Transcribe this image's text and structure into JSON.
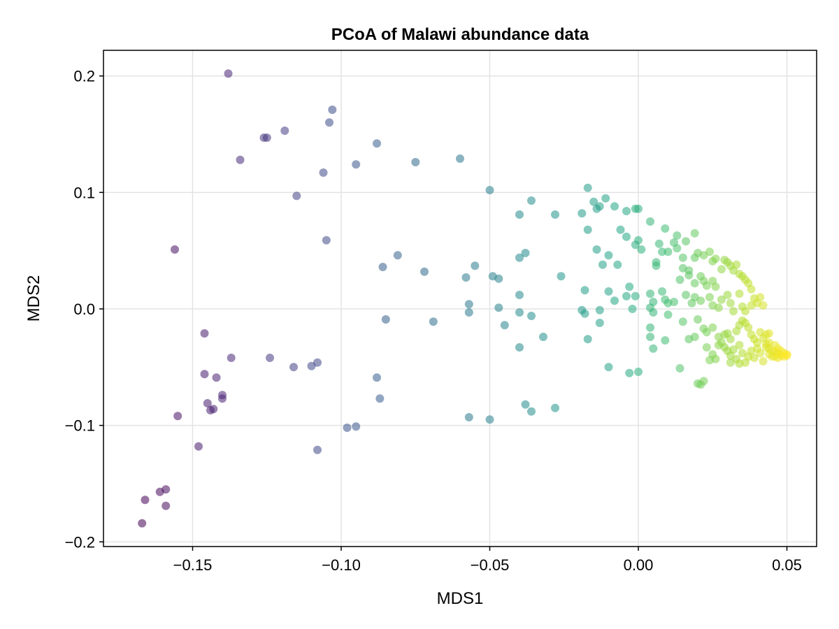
{
  "chart_data": {
    "type": "scatter",
    "title": "PCoA of Malawi abundance data",
    "xlabel": "MDS1",
    "ylabel": "MDS2",
    "xlim": [
      -0.18,
      0.06
    ],
    "ylim": [
      -0.204,
      0.222
    ],
    "xticks": [
      -0.15,
      -0.1,
      -0.05,
      0.0,
      0.05
    ],
    "xtick_labels": [
      "−0.15",
      "−0.10",
      "−0.05",
      "0.00",
      "0.05"
    ],
    "yticks": [
      -0.2,
      -0.1,
      0.0,
      0.1,
      0.2
    ],
    "ytick_labels": [
      "−0.2",
      "−0.1",
      "0.0",
      "0.1",
      "0.2"
    ],
    "grid": true,
    "legend": "none",
    "colormap": "viridis",
    "color_by": "MDS1",
    "point_opacity": 0.55,
    "points": [
      [
        -0.138,
        0.202
      ],
      [
        -0.103,
        0.171
      ],
      [
        -0.104,
        0.16
      ],
      [
        -0.125,
        0.147
      ],
      [
        -0.126,
        0.147
      ],
      [
        -0.119,
        0.153
      ],
      [
        -0.088,
        0.142
      ],
      [
        -0.134,
        0.128
      ],
      [
        -0.095,
        0.124
      ],
      [
        -0.075,
        0.126
      ],
      [
        -0.06,
        0.129
      ],
      [
        -0.106,
        0.117
      ],
      [
        -0.115,
        0.097
      ],
      [
        -0.105,
        0.059
      ],
      [
        -0.156,
        0.051
      ],
      [
        -0.05,
        0.102
      ],
      [
        -0.04,
        0.081
      ],
      [
        -0.036,
        0.093
      ],
      [
        -0.028,
        0.081
      ],
      [
        -0.081,
        0.046
      ],
      [
        -0.086,
        0.036
      ],
      [
        -0.072,
        0.032
      ],
      [
        -0.055,
        0.037
      ],
      [
        -0.058,
        0.027
      ],
      [
        -0.049,
        0.028
      ],
      [
        -0.047,
        0.026
      ],
      [
        -0.04,
        0.044
      ],
      [
        -0.038,
        0.048
      ],
      [
        -0.04,
        0.012
      ],
      [
        -0.026,
        0.028
      ],
      [
        -0.057,
        0.004
      ],
      [
        -0.057,
        -0.003
      ],
      [
        -0.047,
        0.001
      ],
      [
        -0.045,
        -0.014
      ],
      [
        -0.04,
        -0.003
      ],
      [
        -0.085,
        -0.009
      ],
      [
        -0.069,
        -0.011
      ],
      [
        -0.036,
        -0.006
      ],
      [
        -0.04,
        -0.033
      ],
      [
        -0.032,
        -0.024
      ],
      [
        -0.146,
        -0.021
      ],
      [
        -0.137,
        -0.042
      ],
      [
        -0.124,
        -0.042
      ],
      [
        -0.116,
        -0.05
      ],
      [
        -0.108,
        -0.046
      ],
      [
        -0.11,
        -0.049
      ],
      [
        -0.146,
        -0.056
      ],
      [
        -0.142,
        -0.059
      ],
      [
        -0.14,
        -0.074
      ],
      [
        -0.14,
        -0.077
      ],
      [
        -0.145,
        -0.081
      ],
      [
        -0.143,
        -0.086
      ],
      [
        -0.144,
        -0.087
      ],
      [
        -0.155,
        -0.092
      ],
      [
        -0.148,
        -0.118
      ],
      [
        -0.108,
        -0.121
      ],
      [
        -0.088,
        -0.059
      ],
      [
        -0.087,
        -0.077
      ],
      [
        -0.098,
        -0.102
      ],
      [
        -0.095,
        -0.101
      ],
      [
        -0.057,
        -0.093
      ],
      [
        -0.05,
        -0.095
      ],
      [
        -0.038,
        -0.082
      ],
      [
        -0.036,
        -0.088
      ],
      [
        -0.028,
        -0.085
      ],
      [
        -0.166,
        -0.164
      ],
      [
        -0.159,
        -0.155
      ],
      [
        -0.161,
        -0.157
      ],
      [
        -0.159,
        -0.169
      ],
      [
        -0.167,
        -0.184
      ],
      [
        -0.017,
        0.104
      ],
      [
        -0.015,
        0.092
      ],
      [
        -0.011,
        0.095
      ],
      [
        -0.013,
        0.088
      ],
      [
        -0.014,
        0.086
      ],
      [
        -0.019,
        0.082
      ],
      [
        -0.008,
        0.088
      ],
      [
        -0.004,
        0.084
      ],
      [
        -0.001,
        0.086
      ],
      [
        0.0,
        0.086
      ],
      [
        -0.006,
        0.068
      ],
      [
        -0.017,
        0.068
      ],
      [
        -0.004,
        0.062
      ],
      [
        0.004,
        0.075
      ],
      [
        0.009,
        0.069
      ],
      [
        0.013,
        0.063
      ],
      [
        0.019,
        0.065
      ],
      [
        -0.001,
        0.055
      ],
      [
        0.0,
        0.059
      ],
      [
        0.001,
        0.051
      ],
      [
        0.007,
        0.056
      ],
      [
        0.008,
        0.049
      ],
      [
        0.01,
        0.049
      ],
      [
        0.012,
        0.057
      ],
      [
        0.013,
        0.052
      ],
      [
        0.016,
        0.058
      ],
      [
        -0.014,
        0.051
      ],
      [
        -0.01,
        0.046
      ],
      [
        -0.012,
        0.038
      ],
      [
        -0.007,
        0.038
      ],
      [
        0.006,
        0.04
      ],
      [
        0.006,
        0.037
      ],
      [
        0.015,
        0.044
      ],
      [
        0.015,
        0.035
      ],
      [
        0.017,
        0.033
      ],
      [
        0.019,
        0.044
      ],
      [
        0.02,
        0.048
      ],
      [
        0.022,
        0.046
      ],
      [
        0.024,
        0.049
      ],
      [
        0.025,
        0.041
      ],
      [
        0.026,
        0.043
      ],
      [
        0.014,
        0.025
      ],
      [
        0.017,
        0.029
      ],
      [
        0.019,
        0.022
      ],
      [
        0.021,
        0.028
      ],
      [
        0.022,
        0.024
      ],
      [
        0.023,
        0.02
      ],
      [
        0.025,
        0.024
      ],
      [
        0.026,
        0.019
      ],
      [
        0.028,
        0.034
      ],
      [
        0.029,
        0.042
      ],
      [
        0.03,
        0.04
      ],
      [
        0.031,
        0.037
      ],
      [
        0.032,
        0.033
      ],
      [
        0.033,
        0.038
      ],
      [
        0.034,
        0.03
      ],
      [
        0.035,
        0.028
      ],
      [
        0.036,
        0.025
      ],
      [
        0.037,
        0.022
      ],
      [
        0.038,
        0.017
      ],
      [
        -0.018,
        0.016
      ],
      [
        -0.01,
        0.015
      ],
      [
        -0.003,
        0.019
      ],
      [
        -0.004,
        0.011
      ],
      [
        -0.008,
        0.007
      ],
      [
        -0.001,
        0.011
      ],
      [
        0.004,
        0.013
      ],
      [
        0.005,
        0.006
      ],
      [
        0.008,
        0.015
      ],
      [
        0.009,
        0.008
      ],
      [
        0.01,
        0.005
      ],
      [
        0.012,
        0.006
      ],
      [
        0.016,
        0.012
      ],
      [
        0.018,
        0.005
      ],
      [
        0.019,
        0.01
      ],
      [
        0.021,
        0.007
      ],
      [
        0.024,
        0.01
      ],
      [
        0.025,
        0.003
      ],
      [
        0.027,
        0.001
      ],
      [
        0.028,
        0.008
      ],
      [
        0.03,
        0.012
      ],
      [
        0.031,
        0.005
      ],
      [
        0.032,
        -0.002
      ],
      [
        0.034,
        0.013
      ],
      [
        0.035,
        0.002
      ],
      [
        0.036,
        -0.002
      ],
      [
        0.038,
        0.003
      ],
      [
        0.039,
        0.009
      ],
      [
        0.04,
        0.005
      ],
      [
        0.041,
        0.01
      ],
      [
        0.042,
        0.003
      ],
      [
        -0.019,
        -0.001
      ],
      [
        -0.018,
        -0.004
      ],
      [
        -0.013,
        -0.001
      ],
      [
        -0.013,
        -0.012
      ],
      [
        -0.002,
        0.0
      ],
      [
        0.004,
        0.001
      ],
      [
        0.005,
        -0.003
      ],
      [
        0.01,
        -0.005
      ],
      [
        0.015,
        -0.011
      ],
      [
        0.02,
        -0.009
      ],
      [
        0.022,
        -0.017
      ],
      [
        0.023,
        -0.02
      ],
      [
        0.025,
        -0.016
      ],
      [
        0.027,
        -0.024
      ],
      [
        0.028,
        -0.029
      ],
      [
        0.029,
        -0.022
      ],
      [
        0.03,
        -0.021
      ],
      [
        0.031,
        -0.026
      ],
      [
        0.033,
        -0.019
      ],
      [
        0.034,
        -0.014
      ],
      [
        0.035,
        -0.01
      ],
      [
        0.036,
        -0.012
      ],
      [
        0.037,
        -0.016
      ],
      [
        0.038,
        -0.022
      ],
      [
        0.039,
        -0.026
      ],
      [
        0.04,
        -0.029
      ],
      [
        0.041,
        -0.02
      ],
      [
        0.042,
        -0.025
      ],
      [
        0.043,
        -0.022
      ],
      [
        0.044,
        -0.021
      ],
      [
        -0.017,
        -0.026
      ],
      [
        0.004,
        -0.016
      ],
      [
        0.004,
        -0.024
      ],
      [
        0.005,
        -0.034
      ],
      [
        0.009,
        -0.027
      ],
      [
        0.017,
        -0.026
      ],
      [
        0.019,
        -0.024
      ],
      [
        0.023,
        -0.033
      ],
      [
        0.025,
        -0.039
      ],
      [
        0.026,
        -0.043
      ],
      [
        0.027,
        -0.031
      ],
      [
        0.029,
        -0.033
      ],
      [
        0.03,
        -0.036
      ],
      [
        0.031,
        -0.04
      ],
      [
        0.032,
        -0.035
      ],
      [
        0.033,
        -0.043
      ],
      [
        0.034,
        -0.031
      ],
      [
        0.035,
        -0.038
      ],
      [
        0.036,
        -0.046
      ],
      [
        0.037,
        -0.041
      ],
      [
        0.038,
        -0.036
      ],
      [
        0.039,
        -0.042
      ],
      [
        0.04,
        -0.034
      ],
      [
        0.041,
        -0.038
      ],
      [
        0.042,
        -0.045
      ],
      [
        0.043,
        -0.03
      ],
      [
        0.044,
        -0.034
      ],
      [
        0.044,
        -0.039
      ],
      [
        0.045,
        -0.036
      ],
      [
        0.045,
        -0.041
      ],
      [
        0.046,
        -0.031
      ],
      [
        0.046,
        -0.037
      ],
      [
        0.046,
        -0.041
      ],
      [
        0.047,
        -0.034
      ],
      [
        0.047,
        -0.038
      ],
      [
        0.047,
        -0.042
      ],
      [
        0.048,
        -0.036
      ],
      [
        0.048,
        -0.04
      ],
      [
        0.049,
        -0.038
      ],
      [
        0.049,
        -0.041
      ],
      [
        0.05,
        -0.04
      ],
      [
        0.05,
        -0.039
      ],
      [
        0.043,
        -0.033
      ],
      [
        0.044,
        -0.029
      ],
      [
        0.014,
        -0.051
      ],
      [
        -0.01,
        -0.05
      ],
      [
        -0.003,
        -0.055
      ],
      [
        0.0,
        -0.054
      ],
      [
        0.02,
        -0.064
      ],
      [
        0.021,
        -0.065
      ],
      [
        0.022,
        -0.062
      ],
      [
        0.024,
        -0.044
      ],
      [
        0.034,
        -0.047
      ],
      [
        0.031,
        -0.046
      ]
    ]
  }
}
